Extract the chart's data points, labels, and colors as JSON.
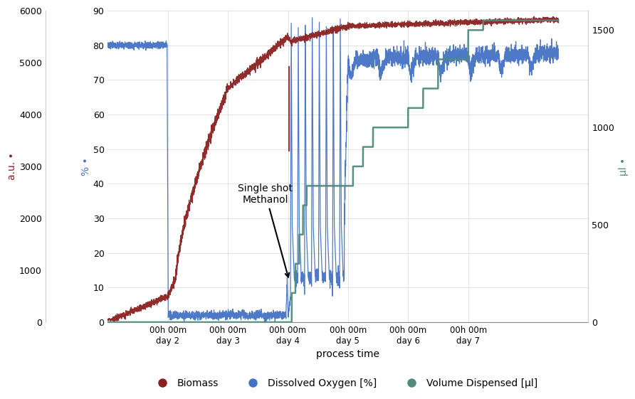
{
  "xlabel": "process time",
  "left_yticks_pct": [
    0,
    10,
    20,
    30,
    40,
    50,
    60,
    70,
    80,
    90
  ],
  "left_yticks_au": [
    0,
    1000,
    2000,
    3000,
    4000,
    5000,
    6000
  ],
  "right_yticks": [
    0,
    500,
    1000,
    1500
  ],
  "xtick_labels": [
    "00h 00m\nday 2",
    "00h 00m\nday 3",
    "00h 00m\nday 4",
    "00h 00m\nday 5",
    "00h 00m\nday 6",
    "00h 00m\nday 7"
  ],
  "annotation_text": "Single shot\nMethanol",
  "biomass_color": "#8B2020",
  "do_color": "#4472C4",
  "vol_color": "#4E8B7A",
  "background_color": "#FFFFFF",
  "legend_labels": [
    "Biomass",
    "Dissolved Oxygen [%]",
    "Volume Dispensed [µl]"
  ],
  "legend_marker_colors": [
    "#8B2020",
    "#4472C4",
    "#4E8B7A"
  ],
  "day2": 24,
  "day3": 48,
  "day4": 72,
  "day5": 96,
  "day6": 120,
  "day7": 144,
  "total_hours": 180,
  "n_points": 5000,
  "ylim_pct": [
    0,
    90
  ],
  "ylim_au": [
    0,
    6000
  ],
  "ylim_ul": [
    0,
    1600
  ],
  "xlim": [
    0,
    192
  ]
}
